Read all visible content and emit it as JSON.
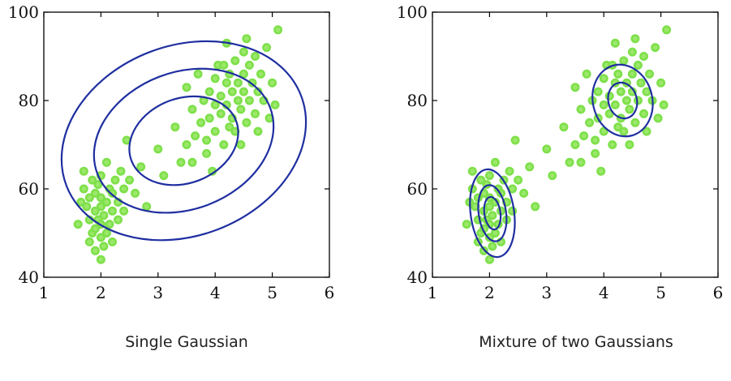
{
  "chart_data": [
    {
      "type": "scatter",
      "title": "Single Gaussian",
      "xlim": [
        1,
        6
      ],
      "ylim": [
        40,
        100
      ],
      "xticks": [
        "1",
        "2",
        "3",
        "4",
        "5",
        "6"
      ],
      "yticks": [
        "40",
        "60",
        "80",
        "100"
      ],
      "grid": false,
      "point_color": "#7ee04a",
      "contour_color": "#1f2fa0",
      "contours": [
        {
          "cx": 3.45,
          "cy": 70.9,
          "rx": 2.2,
          "ry": 21.5,
          "rotate_deg": -21
        },
        {
          "cx": 3.45,
          "cy": 70.9,
          "rx": 1.62,
          "ry": 15.5,
          "rotate_deg": -21
        },
        {
          "cx": 3.45,
          "cy": 70.9,
          "rx": 0.98,
          "ry": 9.6,
          "rotate_deg": -21
        }
      ],
      "points": [
        [
          1.6,
          52
        ],
        [
          1.65,
          57
        ],
        [
          1.7,
          60
        ],
        [
          1.7,
          64
        ],
        [
          1.75,
          56
        ],
        [
          1.8,
          48
        ],
        [
          1.8,
          53
        ],
        [
          1.8,
          58
        ],
        [
          1.85,
          62
        ],
        [
          1.85,
          50
        ],
        [
          1.9,
          46
        ],
        [
          1.9,
          51
        ],
        [
          1.9,
          55
        ],
        [
          1.9,
          59
        ],
        [
          1.95,
          53
        ],
        [
          1.95,
          61
        ],
        [
          2.0,
          44
        ],
        [
          2.0,
          49
        ],
        [
          2.0,
          52
        ],
        [
          2.0,
          56
        ],
        [
          2.0,
          58
        ],
        [
          2.0,
          63
        ],
        [
          2.05,
          47
        ],
        [
          2.05,
          54
        ],
        [
          2.1,
          50
        ],
        [
          2.1,
          57
        ],
        [
          2.1,
          66
        ],
        [
          2.15,
          52
        ],
        [
          2.15,
          60
        ],
        [
          2.2,
          48
        ],
        [
          2.2,
          55
        ],
        [
          2.2,
          59
        ],
        [
          2.25,
          62
        ],
        [
          2.3,
          53
        ],
        [
          2.3,
          57
        ],
        [
          2.35,
          64
        ],
        [
          2.4,
          55
        ],
        [
          2.4,
          60
        ],
        [
          2.45,
          71
        ],
        [
          2.5,
          62
        ],
        [
          2.6,
          59
        ],
        [
          2.7,
          65
        ],
        [
          2.8,
          56
        ],
        [
          3.0,
          69
        ],
        [
          3.1,
          63
        ],
        [
          3.3,
          74
        ],
        [
          3.4,
          66
        ],
        [
          3.5,
          83
        ],
        [
          3.5,
          70
        ],
        [
          3.6,
          78
        ],
        [
          3.65,
          72
        ],
        [
          3.7,
          86
        ],
        [
          3.75,
          75
        ],
        [
          3.8,
          80
        ],
        [
          3.85,
          71
        ],
        [
          3.9,
          82
        ],
        [
          3.9,
          76
        ],
        [
          3.95,
          64
        ],
        [
          4.0,
          85
        ],
        [
          4.0,
          79
        ],
        [
          4.0,
          73
        ],
        [
          4.05,
          88
        ],
        [
          4.1,
          81
        ],
        [
          4.1,
          77
        ],
        [
          4.15,
          70
        ],
        [
          4.2,
          93
        ],
        [
          4.2,
          84
        ],
        [
          4.2,
          79
        ],
        [
          4.25,
          86
        ],
        [
          4.3,
          82
        ],
        [
          4.3,
          76
        ],
        [
          4.35,
          89
        ],
        [
          4.35,
          73
        ],
        [
          4.4,
          84
        ],
        [
          4.4,
          80
        ],
        [
          4.45,
          78
        ],
        [
          4.5,
          91
        ],
        [
          4.5,
          86
        ],
        [
          4.5,
          82
        ],
        [
          4.55,
          75
        ],
        [
          4.6,
          88
        ],
        [
          4.6,
          80
        ],
        [
          4.65,
          84
        ],
        [
          4.7,
          90
        ],
        [
          4.7,
          77
        ],
        [
          4.75,
          82
        ],
        [
          4.8,
          86
        ],
        [
          4.85,
          80
        ],
        [
          4.9,
          92
        ],
        [
          4.95,
          76
        ],
        [
          5.0,
          84
        ],
        [
          5.1,
          96
        ],
        [
          5.05,
          79
        ],
        [
          4.45,
          70
        ],
        [
          3.85,
          68
        ],
        [
          4.25,
          74
        ],
        [
          4.75,
          73
        ],
        [
          4.15,
          88
        ],
        [
          4.55,
          94
        ],
        [
          3.6,
          66
        ]
      ],
      "caption": "Single Gaussian"
    },
    {
      "type": "scatter",
      "title": "Mixture of two Gaussians",
      "xlim": [
        1,
        6
      ],
      "ylim": [
        40,
        100
      ],
      "xticks": [
        "1",
        "2",
        "3",
        "4",
        "5",
        "6"
      ],
      "yticks": [
        "40",
        "60",
        "80",
        "100"
      ],
      "grid": false,
      "point_color": "#7ee04a",
      "contour_color": "#1f2fa0",
      "contours": [
        {
          "cx": 2.05,
          "cy": 54.5,
          "rx": 0.38,
          "ry": 10.0,
          "rotate_deg": -8
        },
        {
          "cx": 2.05,
          "cy": 54.5,
          "rx": 0.24,
          "ry": 6.4,
          "rotate_deg": -8
        },
        {
          "cx": 2.05,
          "cy": 54.5,
          "rx": 0.14,
          "ry": 3.7,
          "rotate_deg": -8
        },
        {
          "cx": 4.33,
          "cy": 80.0,
          "rx": 0.52,
          "ry": 8.2,
          "rotate_deg": -14
        },
        {
          "cx": 4.33,
          "cy": 80.0,
          "rx": 0.25,
          "ry": 4.1,
          "rotate_deg": -14
        }
      ],
      "points": [
        [
          1.6,
          52
        ],
        [
          1.65,
          57
        ],
        [
          1.7,
          60
        ],
        [
          1.7,
          64
        ],
        [
          1.75,
          56
        ],
        [
          1.8,
          48
        ],
        [
          1.8,
          53
        ],
        [
          1.8,
          58
        ],
        [
          1.85,
          62
        ],
        [
          1.85,
          50
        ],
        [
          1.9,
          46
        ],
        [
          1.9,
          51
        ],
        [
          1.9,
          55
        ],
        [
          1.9,
          59
        ],
        [
          1.95,
          53
        ],
        [
          1.95,
          61
        ],
        [
          2.0,
          44
        ],
        [
          2.0,
          49
        ],
        [
          2.0,
          52
        ],
        [
          2.0,
          56
        ],
        [
          2.0,
          58
        ],
        [
          2.0,
          63
        ],
        [
          2.05,
          47
        ],
        [
          2.05,
          54
        ],
        [
          2.1,
          50
        ],
        [
          2.1,
          57
        ],
        [
          2.1,
          66
        ],
        [
          2.15,
          52
        ],
        [
          2.15,
          60
        ],
        [
          2.2,
          48
        ],
        [
          2.2,
          55
        ],
        [
          2.2,
          59
        ],
        [
          2.25,
          62
        ],
        [
          2.3,
          53
        ],
        [
          2.3,
          57
        ],
        [
          2.35,
          64
        ],
        [
          2.4,
          55
        ],
        [
          2.4,
          60
        ],
        [
          2.45,
          71
        ],
        [
          2.5,
          62
        ],
        [
          2.6,
          59
        ],
        [
          2.7,
          65
        ],
        [
          2.8,
          56
        ],
        [
          3.0,
          69
        ],
        [
          3.1,
          63
        ],
        [
          3.3,
          74
        ],
        [
          3.4,
          66
        ],
        [
          3.5,
          83
        ],
        [
          3.5,
          70
        ],
        [
          3.6,
          78
        ],
        [
          3.65,
          72
        ],
        [
          3.7,
          86
        ],
        [
          3.75,
          75
        ],
        [
          3.8,
          80
        ],
        [
          3.85,
          71
        ],
        [
          3.9,
          82
        ],
        [
          3.9,
          76
        ],
        [
          3.95,
          64
        ],
        [
          4.0,
          85
        ],
        [
          4.0,
          79
        ],
        [
          4.0,
          73
        ],
        [
          4.05,
          88
        ],
        [
          4.1,
          81
        ],
        [
          4.1,
          77
        ],
        [
          4.15,
          70
        ],
        [
          4.2,
          93
        ],
        [
          4.2,
          84
        ],
        [
          4.2,
          79
        ],
        [
          4.25,
          86
        ],
        [
          4.3,
          82
        ],
        [
          4.3,
          76
        ],
        [
          4.35,
          89
        ],
        [
          4.35,
          73
        ],
        [
          4.4,
          84
        ],
        [
          4.4,
          80
        ],
        [
          4.45,
          78
        ],
        [
          4.5,
          91
        ],
        [
          4.5,
          86
        ],
        [
          4.5,
          82
        ],
        [
          4.55,
          75
        ],
        [
          4.6,
          88
        ],
        [
          4.6,
          80
        ],
        [
          4.65,
          84
        ],
        [
          4.7,
          90
        ],
        [
          4.7,
          77
        ],
        [
          4.75,
          82
        ],
        [
          4.8,
          86
        ],
        [
          4.85,
          80
        ],
        [
          4.9,
          92
        ],
        [
          4.95,
          76
        ],
        [
          5.0,
          84
        ],
        [
          5.1,
          96
        ],
        [
          5.05,
          79
        ],
        [
          4.45,
          70
        ],
        [
          3.85,
          68
        ],
        [
          4.25,
          74
        ],
        [
          4.75,
          73
        ],
        [
          4.15,
          88
        ],
        [
          4.55,
          94
        ],
        [
          3.6,
          66
        ]
      ],
      "caption": "Mixture of two Gaussians"
    }
  ]
}
